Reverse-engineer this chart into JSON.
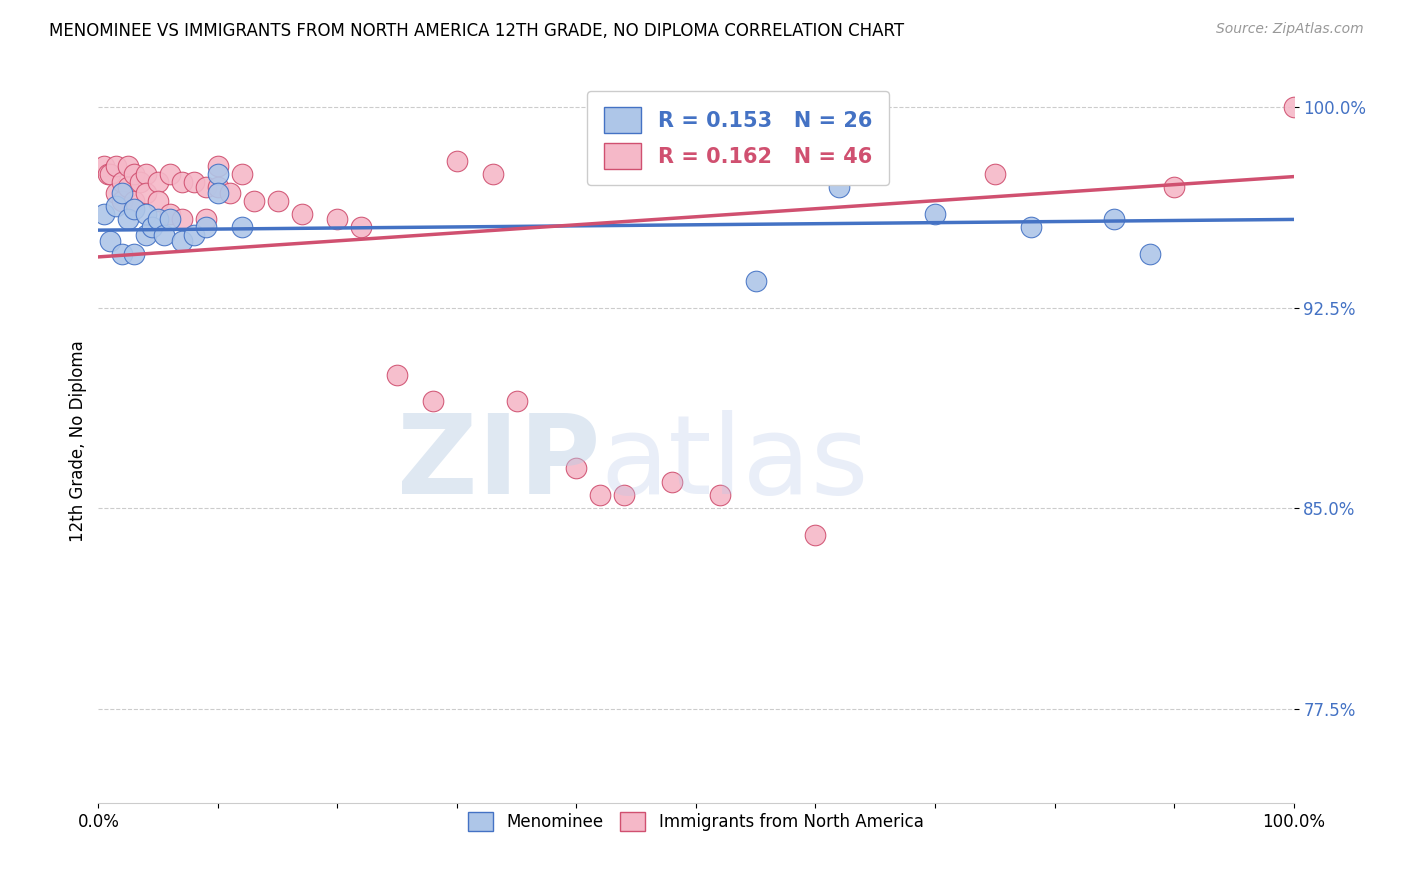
{
  "title": "MENOMINEE VS IMMIGRANTS FROM NORTH AMERICA 12TH GRADE, NO DIPLOMA CORRELATION CHART",
  "source": "Source: ZipAtlas.com",
  "ylabel": "12th Grade, No Diploma",
  "xlim": [
    0.0,
    1.0
  ],
  "ylim": [
    0.74,
    1.01
  ],
  "yticks": [
    0.775,
    0.85,
    0.925,
    1.0
  ],
  "ytick_labels": [
    "77.5%",
    "85.0%",
    "92.5%",
    "100.0%"
  ],
  "xticks": [
    0.0,
    0.1,
    0.2,
    0.3,
    0.4,
    0.5,
    0.6,
    0.7,
    0.8,
    0.9,
    1.0
  ],
  "xtick_labels": [
    "0.0%",
    "",
    "",
    "",
    "",
    "",
    "",
    "",
    "",
    "",
    "100.0%"
  ],
  "menominee_color": "#aec6e8",
  "immigrants_color": "#f5b8c8",
  "menominee_line_color": "#4472c4",
  "immigrants_line_color": "#d05070",
  "R_menominee": 0.153,
  "N_menominee": 26,
  "R_immigrants": 0.162,
  "N_immigrants": 46,
  "menominee_x": [
    0.005,
    0.01,
    0.015,
    0.02,
    0.02,
    0.025,
    0.03,
    0.03,
    0.04,
    0.04,
    0.045,
    0.05,
    0.055,
    0.06,
    0.07,
    0.08,
    0.09,
    0.1,
    0.1,
    0.12,
    0.55,
    0.62,
    0.7,
    0.78,
    0.85,
    0.88
  ],
  "menominee_y": [
    0.96,
    0.95,
    0.963,
    0.968,
    0.945,
    0.958,
    0.962,
    0.945,
    0.96,
    0.952,
    0.955,
    0.958,
    0.952,
    0.958,
    0.95,
    0.952,
    0.955,
    0.975,
    0.968,
    0.955,
    0.935,
    0.97,
    0.96,
    0.955,
    0.958,
    0.945
  ],
  "immigrants_x": [
    0.005,
    0.008,
    0.01,
    0.015,
    0.015,
    0.02,
    0.02,
    0.025,
    0.025,
    0.03,
    0.03,
    0.035,
    0.04,
    0.04,
    0.05,
    0.05,
    0.06,
    0.06,
    0.07,
    0.07,
    0.08,
    0.09,
    0.09,
    0.1,
    0.1,
    0.11,
    0.12,
    0.13,
    0.15,
    0.17,
    0.2,
    0.22,
    0.25,
    0.28,
    0.3,
    0.33,
    0.35,
    0.4,
    0.42,
    0.44,
    0.48,
    0.52,
    0.6,
    0.75,
    0.9,
    1.0
  ],
  "immigrants_y": [
    0.978,
    0.975,
    0.975,
    0.978,
    0.968,
    0.972,
    0.965,
    0.978,
    0.97,
    0.975,
    0.965,
    0.972,
    0.975,
    0.968,
    0.972,
    0.965,
    0.975,
    0.96,
    0.972,
    0.958,
    0.972,
    0.97,
    0.958,
    0.978,
    0.97,
    0.968,
    0.975,
    0.965,
    0.965,
    0.96,
    0.958,
    0.955,
    0.9,
    0.89,
    0.98,
    0.975,
    0.89,
    0.865,
    0.855,
    0.855,
    0.86,
    0.855,
    0.84,
    0.975,
    0.97,
    1.0
  ]
}
